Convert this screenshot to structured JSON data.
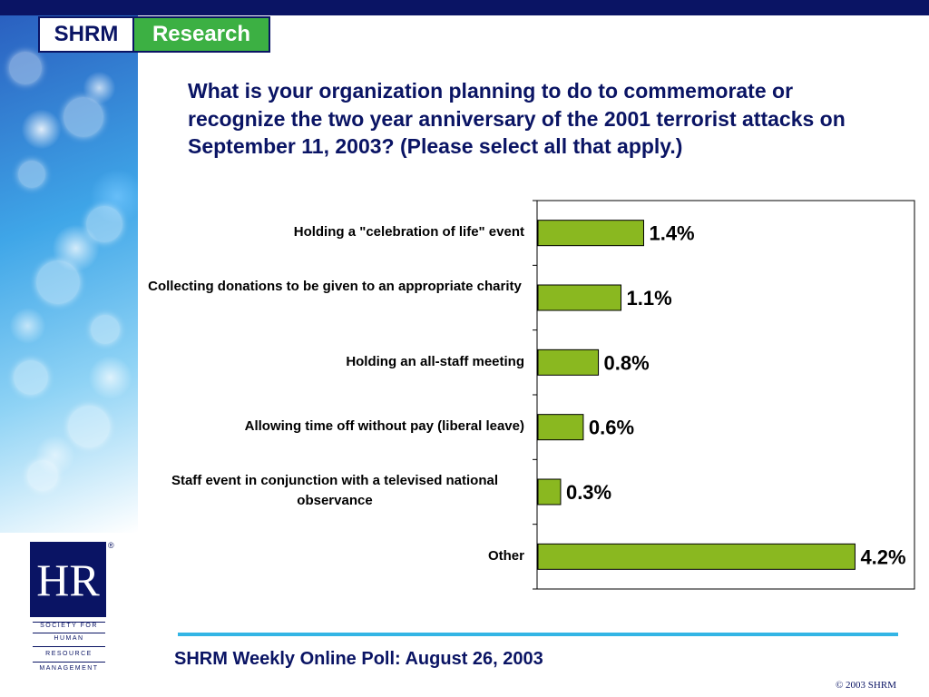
{
  "logo": {
    "shrm": "SHRM",
    "research": "Research"
  },
  "question": "What is your organization planning to do to commemorate or recognize the two year anniversary of the 2001 terrorist attacks on September 11, 2003? (Please select all that apply.)",
  "footer": {
    "title": "SHRM Weekly Online Poll: August 26, 2003",
    "copyright": "© 2003 SHRM"
  },
  "hr_logo": {
    "mark": "HR",
    "reg": "®",
    "lines": [
      "SOCIETY FOR",
      "HUMAN",
      "RESOURCE",
      "MANAGEMENT"
    ]
  },
  "colors": {
    "bar": "#8ab820",
    "navy": "#0a1464",
    "green": "#3cb043",
    "accent_rule": "#33b5e5"
  },
  "chart_data": {
    "type": "bar",
    "orientation": "horizontal",
    "categories": [
      "Holding a \"celebration of life\" event",
      "Collecting donations to be given to an appropriate charity",
      "Holding an all-staff meeting",
      "Allowing time off without pay (liberal leave)",
      "Staff event in conjunction with a televised national observance",
      "Other"
    ],
    "values": [
      1.4,
      1.1,
      0.8,
      0.6,
      0.3,
      4.2
    ],
    "value_labels": [
      "1.4%",
      "1.1%",
      "0.8%",
      "0.6%",
      "0.3%",
      "4.2%"
    ],
    "xlim": [
      0,
      5
    ],
    "grid": false
  }
}
